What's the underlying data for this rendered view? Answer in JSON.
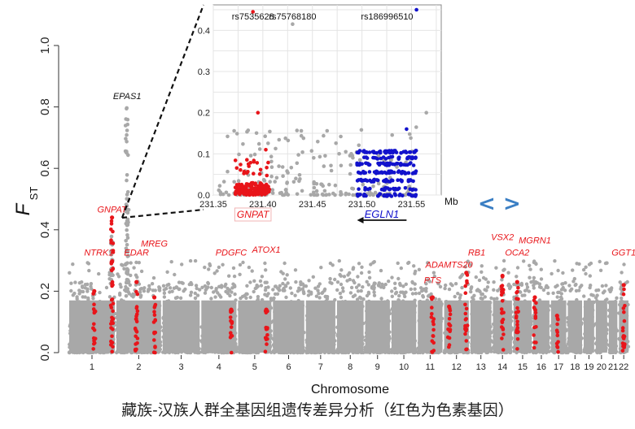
{
  "caption": "藏族-汉族人群全基因组遗传差异分析（红色为色素基因）",
  "nav": {
    "prev_label": "<",
    "next_label": ">"
  },
  "colors": {
    "background_points": "#a8a8a8",
    "pigment_points": "#e8151a",
    "egln1_points": "#1212cc",
    "nav": "#3b7fc4"
  },
  "chart_data": [
    {
      "type": "scatter",
      "title": "",
      "ylabel": "F",
      "ylabel_sub": "ST",
      "xlabel": "Chromosome",
      "ylim": [
        0,
        1.0
      ],
      "yticks": [
        0.0,
        0.2,
        0.4,
        0.6,
        0.8,
        1.0
      ],
      "chromosomes": [
        "1",
        "2",
        "3",
        "4",
        "5",
        "6",
        "7",
        "8",
        "9",
        "10",
        "11",
        "12",
        "13",
        "14",
        "15",
        "16",
        "17",
        "18",
        "19",
        "20",
        "21",
        "22"
      ],
      "chromosome_relative_lengths": [
        0.24,
        0.235,
        0.195,
        0.185,
        0.175,
        0.165,
        0.155,
        0.14,
        0.13,
        0.13,
        0.13,
        0.13,
        0.11,
        0.1,
        0.095,
        0.085,
        0.08,
        0.075,
        0.055,
        0.06,
        0.045,
        0.05
      ],
      "series": [
        {
          "name": "",
          "color": "#a8a8a8",
          "description_level": 0.2
        },
        {
          "name": "",
          "color": "#e8151a"
        }
      ],
      "annotations": [
        {
          "label": "EPAS1",
          "chrom": "2",
          "pos": 0.24,
          "y": 0.81,
          "color": "#111111"
        },
        {
          "label": "GNPAT",
          "chrom": "1",
          "pos": 0.94,
          "y": 0.44,
          "color": "#e8151a"
        },
        {
          "label": "NTRK1",
          "chrom": "1",
          "pos": 0.65,
          "y": 0.3,
          "color": "#e8151a"
        },
        {
          "label": "EDAR",
          "chrom": "2",
          "pos": 0.45,
          "y": 0.3,
          "color": "#e8151a"
        },
        {
          "label": "MREG",
          "chrom": "2",
          "pos": 0.85,
          "y": 0.33,
          "color": "#e8151a"
        },
        {
          "label": "PDGFC",
          "chrom": "4",
          "pos": 0.85,
          "y": 0.3,
          "color": "#e8151a"
        },
        {
          "label": "ATOX1",
          "chrom": "5",
          "pos": 0.85,
          "y": 0.31,
          "color": "#e8151a"
        },
        {
          "label": "ADAMTS20",
          "chrom": "12",
          "pos": 0.2,
          "y": 0.26,
          "color": "#e8151a"
        },
        {
          "label": "PTS",
          "chrom": "11",
          "pos": 0.6,
          "y": 0.21,
          "color": "#e8151a"
        },
        {
          "label": "RB1",
          "chrom": "13",
          "pos": 0.3,
          "y": 0.3,
          "color": "#e8151a"
        },
        {
          "label": "VSX2",
          "chrom": "14",
          "pos": 0.5,
          "y": 0.35,
          "color": "#e8151a"
        },
        {
          "label": "OCA2",
          "chrom": "15",
          "pos": 0.2,
          "y": 0.3,
          "color": "#e8151a"
        },
        {
          "label": "MGRN1",
          "chrom": "16",
          "pos": 0.1,
          "y": 0.34,
          "color": "#e8151a"
        },
        {
          "label": "GGT1",
          "chrom": "22",
          "pos": 0.5,
          "y": 0.3,
          "color": "#e8151a"
        }
      ],
      "highlight_columns": [
        {
          "chrom": "1",
          "pos": 0.55,
          "ymax": 0.2
        },
        {
          "chrom": "1",
          "pos": 0.94,
          "ymax": 0.44
        },
        {
          "chrom": "2",
          "pos": 0.45,
          "ymax": 0.23
        },
        {
          "chrom": "2",
          "pos": 0.85,
          "ymax": 0.18
        },
        {
          "chrom": "4",
          "pos": 0.85,
          "ymax": 0.14
        },
        {
          "chrom": "5",
          "pos": 0.85,
          "ymax": 0.14
        },
        {
          "chrom": "11",
          "pos": 0.6,
          "ymax": 0.18
        },
        {
          "chrom": "12",
          "pos": 0.2,
          "ymax": 0.15
        },
        {
          "chrom": "12",
          "pos": 0.9,
          "ymax": 0.26
        },
        {
          "chrom": "14",
          "pos": 0.5,
          "ymax": 0.25
        },
        {
          "chrom": "15",
          "pos": 0.2,
          "ymax": 0.23
        },
        {
          "chrom": "16",
          "pos": 0.1,
          "ymax": 0.18
        },
        {
          "chrom": "17",
          "pos": 0.4,
          "ymax": 0.12
        },
        {
          "chrom": "22",
          "pos": 0.5,
          "ymax": 0.22
        }
      ]
    },
    {
      "type": "scatter",
      "title": "",
      "xlabel": "Mb",
      "xlim": [
        231.35,
        231.58
      ],
      "ylim": [
        0,
        0.45
      ],
      "xticks": [
        231.35,
        231.4,
        231.45,
        231.5,
        231.55
      ],
      "yticks": [
        0.0,
        0.1,
        0.2,
        0.3,
        0.4
      ],
      "grid": true,
      "snp_labels": [
        {
          "label": "rs7535628",
          "x": 231.39,
          "y": 0.445,
          "color": "#e8151a"
        },
        {
          "label": "rs75768180",
          "x": 231.43,
          "y": 0.415,
          "color": "#a8a8a8"
        },
        {
          "label": "rs186996510",
          "x": 231.555,
          "y": 0.45,
          "color": "#1212cc"
        }
      ],
      "genes": [
        {
          "label": "GNPAT",
          "start": 231.375,
          "end": 231.405,
          "color": "#e8151a"
        },
        {
          "label": "EGLN1",
          "start": 231.495,
          "end": 231.545,
          "color": "#1212cc",
          "strand": "-"
        }
      ],
      "series": [
        {
          "name": "",
          "color": "#a8a8a8"
        },
        {
          "name": "",
          "color": "#e8151a"
        },
        {
          "name": "",
          "color": "#1212cc"
        }
      ]
    }
  ]
}
